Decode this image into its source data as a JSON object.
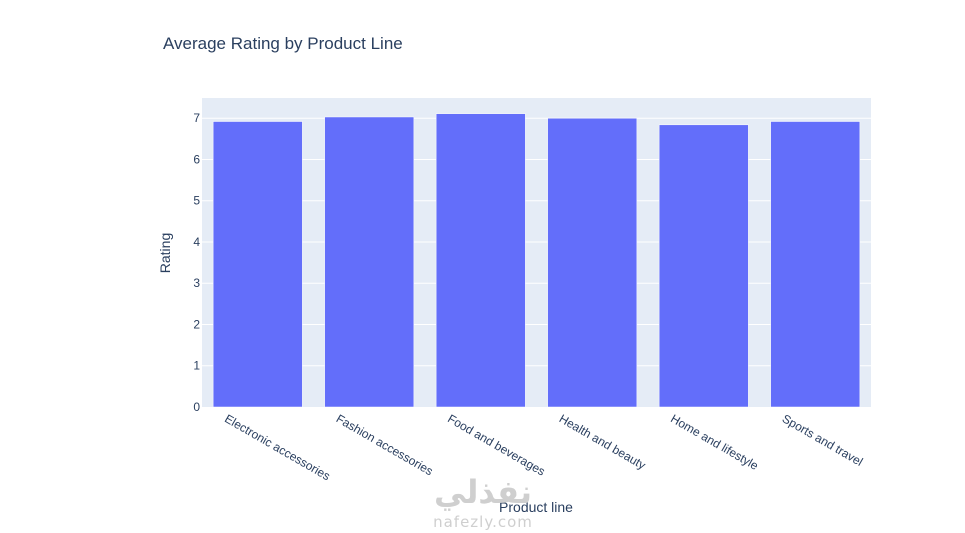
{
  "chart_data": {
    "type": "bar",
    "title": "Average Rating by Product Line",
    "xlabel": "Product line",
    "ylabel": "Rating",
    "categories": [
      "Electronic accessories",
      "Fashion accessories",
      "Food and beverages",
      "Health and beauty",
      "Home and lifestyle",
      "Sports and travel"
    ],
    "values": [
      6.92,
      7.03,
      7.11,
      7.0,
      6.84,
      6.92
    ],
    "yticks": [
      0,
      1,
      2,
      3,
      4,
      5,
      6,
      7
    ],
    "ylim": [
      0,
      7.49
    ],
    "grid": true,
    "bar_color": "#636efa",
    "plot_bg": "#e5ecf6"
  },
  "watermark": {
    "arabic": "نفذلي",
    "latin": "nafezly.com"
  }
}
